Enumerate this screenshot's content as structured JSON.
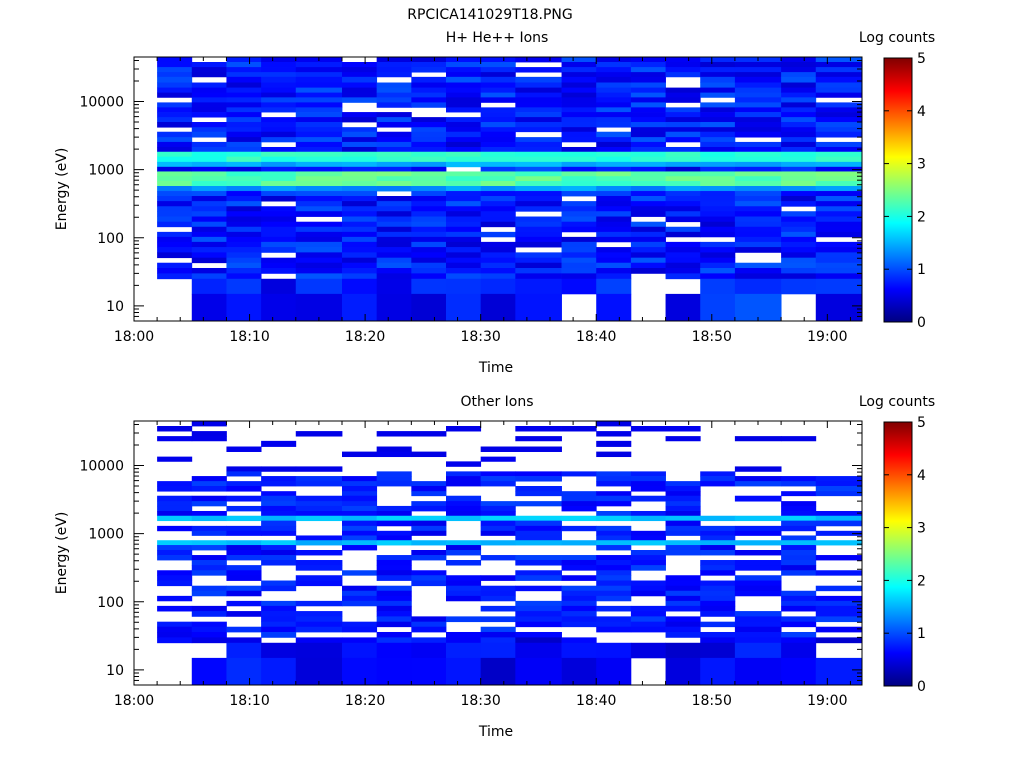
{
  "figure_title": "RPCICA141029T18.PNG",
  "chart_data": [
    {
      "type": "heatmap",
      "title": "H+ He++ Ions",
      "xlabel": "Time",
      "ylabel": "Energy (eV)",
      "x_tick_labels": [
        "18:00",
        "18:10",
        "18:20",
        "18:30",
        "18:40",
        "18:50",
        "19:00"
      ],
      "xlim": [
        "18:00",
        "19:03"
      ],
      "yscale": "log",
      "y_tick_labels": [
        "10",
        "100",
        "1000",
        "10000"
      ],
      "ylim": [
        6,
        45000
      ],
      "colorbar_label": "Log counts",
      "colorbar_tick_labels": [
        "0",
        "1",
        "2",
        "3",
        "4",
        "5"
      ],
      "colorbar_range": [
        0,
        5
      ],
      "time_start": [
        "18:02",
        "18:05",
        "18:08",
        "18:11",
        "18:14",
        "18:18",
        "18:21",
        "18:24",
        "18:27",
        "18:30",
        "18:33",
        "18:37",
        "18:40",
        "18:43",
        "18:46",
        "18:49",
        "18:52",
        "18:56",
        "18:59"
      ],
      "time_end": "19:03",
      "energy_band_edges": [
        45000,
        38000,
        32000,
        27000,
        23000,
        19000,
        16000,
        13500,
        11500,
        9700,
        8200,
        7000,
        5900,
        5000,
        4200,
        3600,
        3000,
        2550,
        2150,
        1830,
        1550,
        1300,
        1100,
        940,
        800,
        680,
        575,
        485,
        410,
        345,
        290,
        245,
        205,
        172,
        145,
        122,
        103,
        87,
        73,
        61,
        51,
        43,
        36,
        30,
        25,
        15,
        6
      ]
    },
    {
      "type": "heatmap",
      "title": "Other Ions",
      "xlabel": "Time",
      "ylabel": "Energy (eV)",
      "x_tick_labels": [
        "18:00",
        "18:10",
        "18:20",
        "18:30",
        "18:40",
        "18:50",
        "19:00"
      ],
      "xlim": [
        "18:00",
        "19:03"
      ],
      "yscale": "log",
      "y_tick_labels": [
        "10",
        "100",
        "1000",
        "10000"
      ],
      "ylim": [
        6,
        45000
      ],
      "colorbar_label": "Log counts",
      "colorbar_tick_labels": [
        "0",
        "1",
        "2",
        "3",
        "4",
        "5"
      ],
      "colorbar_range": [
        0,
        5
      ],
      "time_start": [
        "18:02",
        "18:05",
        "18:08",
        "18:11",
        "18:14",
        "18:18",
        "18:21",
        "18:24",
        "18:27",
        "18:30",
        "18:33",
        "18:37",
        "18:40",
        "18:43",
        "18:46",
        "18:49",
        "18:52",
        "18:56",
        "18:59"
      ],
      "time_end": "19:03",
      "energy_band_edges": [
        45000,
        38000,
        32000,
        27000,
        23000,
        19000,
        16000,
        13500,
        11500,
        9700,
        8200,
        7000,
        5900,
        5000,
        4200,
        3600,
        3000,
        2550,
        2150,
        1830,
        1550,
        1300,
        1100,
        940,
        800,
        680,
        575,
        485,
        410,
        345,
        290,
        245,
        205,
        172,
        145,
        122,
        103,
        87,
        73,
        61,
        51,
        43,
        36,
        30,
        25,
        15,
        6
      ]
    }
  ]
}
